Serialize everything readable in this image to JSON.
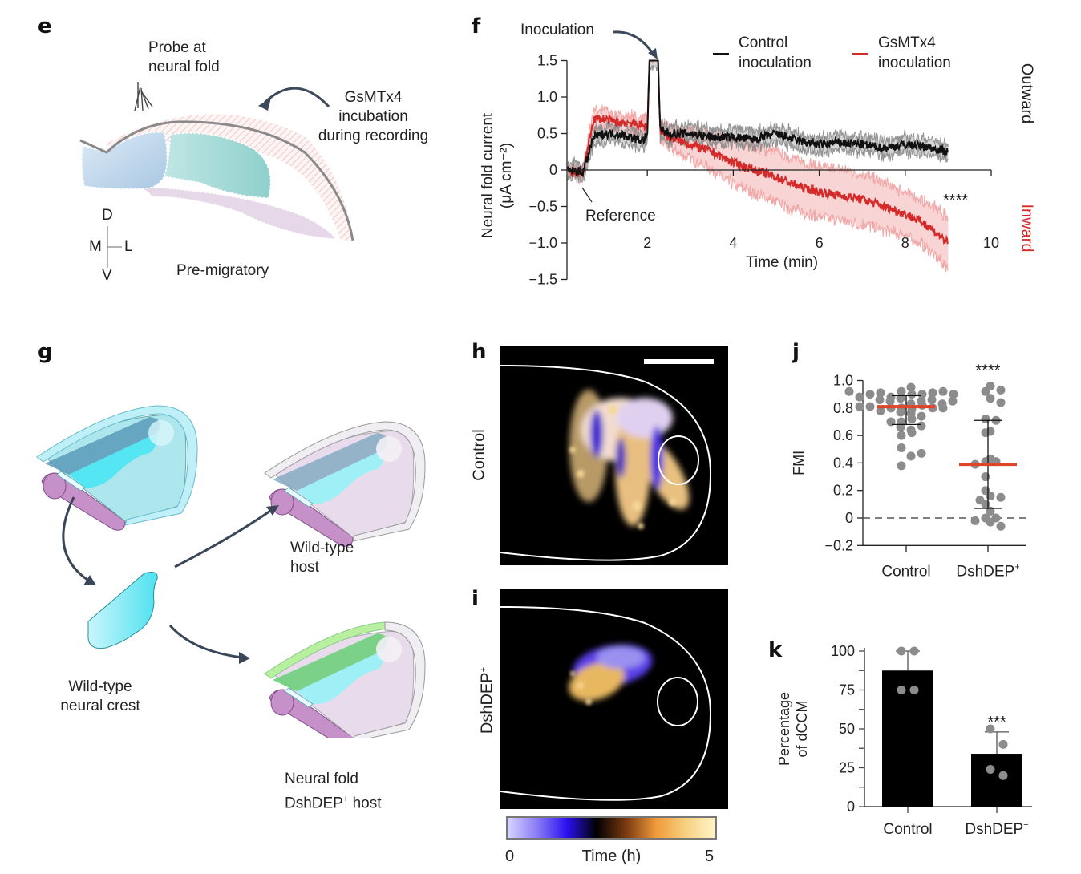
{
  "panels": {
    "e": {
      "label": "e",
      "probe_label": "Probe at\nneural fold",
      "incubation_label": "GsMTx4\nincubation\nduring recording",
      "stage_label": "Pre-migratory",
      "axes": {
        "dorsal": "D",
        "ventral": "V",
        "medial": "M",
        "lateral": "L"
      }
    },
    "f": {
      "label": "f"
    },
    "g": {
      "label": "g",
      "donor_label": "Wild-type\nneural crest",
      "host_wt_label": "Wild-type\nhost",
      "host_dsh_label_line1": "Neural fold",
      "host_dsh_label_line2_pre": "DshDEP",
      "host_dsh_label_sup": "+",
      "host_dsh_label_line2_post": " host"
    },
    "h": {
      "label": "h",
      "row_label": "Control"
    },
    "i": {
      "label": "i",
      "row_label": "DshDEP",
      "row_label_sup": "+"
    },
    "colorbar": {
      "min_label": "0",
      "title": "Time (h)",
      "max_label": "5",
      "stops": [
        "#d8d4ff",
        "#8a7bf5",
        "#2a10f0",
        "#000000",
        "#7a3a10",
        "#f09a3a",
        "#f8d080",
        "#fff4c8"
      ]
    },
    "j": {
      "label": "j"
    },
    "k": {
      "label": "k"
    }
  },
  "colors": {
    "control": "#111111",
    "control_band": "#8a8a8a",
    "gsmtx4": "#d42a2a",
    "gsmtx4_band": "#f0a0a0",
    "mean_bar": "#e0452a",
    "point": "#8c8c8c",
    "inward": "#d42a2a",
    "arrow": "#3d4a5c"
  },
  "chart_data": [
    {
      "id": "f",
      "type": "line",
      "title": "",
      "xlabel": "Time (min)",
      "ylabel": "Neural fold current (μA cm⁻²)",
      "ylabel_line1": "Neural fold current",
      "ylabel_line2": "(μA cm⁻²)",
      "xlim": [
        0,
        10
      ],
      "ylim": [
        -1.5,
        1.5
      ],
      "xticks": [
        2,
        4,
        6,
        8,
        10
      ],
      "yticks": [
        1.5,
        1.0,
        0.5,
        0,
        -0.5,
        -1.0,
        -1.5
      ],
      "ytick_labels": [
        "1.5",
        "1.0",
        "0.5",
        "0",
        "−0.5",
        "−1.0",
        "−1.5"
      ],
      "legend": [
        {
          "name": "Control\ninoculation",
          "line1": "Control",
          "line2": "inoculation"
        },
        {
          "name": "GsMTx4\ninoculation",
          "line1": "GsMTx4",
          "line2": "inoculation"
        }
      ],
      "legend_position": "top-right",
      "annotations": {
        "inoculation": "Inoculation",
        "reference": "Reference",
        "significance": "****",
        "outward": "Outward",
        "inward": "Inward"
      },
      "series": [
        {
          "name": "Control inoculation",
          "x": [
            0.15,
            0.5,
            0.55,
            0.75,
            1.0,
            1.3,
            1.6,
            1.9,
            2.0,
            2.05,
            2.15,
            2.25,
            2.3,
            2.5,
            3.0,
            3.5,
            4.0,
            4.5,
            5.0,
            5.5,
            6.0,
            6.5,
            7.0,
            7.5,
            8.0,
            8.5,
            9.0
          ],
          "y": [
            0.0,
            -0.03,
            0.05,
            0.45,
            0.5,
            0.5,
            0.45,
            0.4,
            0.5,
            1.5,
            1.5,
            1.5,
            0.55,
            0.5,
            0.5,
            0.45,
            0.45,
            0.42,
            0.5,
            0.4,
            0.35,
            0.38,
            0.35,
            0.3,
            0.35,
            0.32,
            0.25
          ],
          "sem": 0.1
        },
        {
          "name": "GsMTx4 inoculation",
          "x": [
            0.15,
            0.5,
            0.55,
            0.75,
            1.0,
            1.3,
            1.6,
            1.9,
            2.0,
            2.05,
            2.15,
            2.25,
            2.3,
            2.5,
            3.0,
            3.5,
            4.0,
            4.5,
            5.0,
            5.5,
            6.0,
            6.5,
            7.0,
            7.5,
            8.0,
            8.5,
            9.0
          ],
          "y": [
            -0.02,
            -0.05,
            0.1,
            0.7,
            0.7,
            0.65,
            0.65,
            0.6,
            0.6,
            1.5,
            1.5,
            1.5,
            0.55,
            0.45,
            0.35,
            0.25,
            0.1,
            0.0,
            -0.1,
            -0.22,
            -0.3,
            -0.35,
            -0.4,
            -0.5,
            -0.6,
            -0.75,
            -1.0
          ],
          "sem": [
            0.05,
            0.08,
            0.1,
            0.12,
            0.12,
            0.1,
            0.1,
            0.1,
            0.1,
            0,
            0,
            0,
            0.12,
            0.15,
            0.2,
            0.25,
            0.3,
            0.32,
            0.35,
            0.35,
            0.35,
            0.35,
            0.35,
            0.32,
            0.3,
            0.3,
            0.35
          ]
        }
      ]
    },
    {
      "id": "j",
      "type": "scatter",
      "title": "",
      "xlabel": "",
      "ylabel": "FMI",
      "ylim": [
        -0.2,
        1.0
      ],
      "yticks": [
        1.0,
        0.8,
        0.6,
        0.4,
        0.2,
        0,
        -0.2
      ],
      "ytick_labels": [
        "1.0",
        "0.8",
        "0.6",
        "0.4",
        "0.2",
        "0",
        "−0.2"
      ],
      "categories": [
        "Control",
        "DshDEP"
      ],
      "category_sup": [
        "",
        "+"
      ],
      "significance": [
        "",
        "****"
      ],
      "reference_line": 0,
      "groups": [
        {
          "name": "Control",
          "mean": 0.81,
          "sd_low": 0.68,
          "sd_high": 0.89,
          "points": [
            0.92,
            0.9,
            0.88,
            0.83,
            0.8,
            0.79,
            0.9,
            0.85,
            0.8,
            0.7,
            0.64,
            0.91,
            0.87,
            0.82,
            0.78,
            0.72,
            0.6,
            0.51,
            0.45,
            0.91,
            0.86,
            0.8,
            0.76,
            0.7,
            0.67,
            0.62,
            0.47,
            0.38,
            0.9,
            0.85,
            0.81,
            0.74,
            0.92,
            0.88,
            0.83,
            0.77,
            0.66,
            0.95,
            0.9,
            0.86,
            0.8,
            0.92,
            0.85,
            0.81
          ]
        },
        {
          "name": "DshDEP+",
          "mean": 0.39,
          "sd_low": 0.07,
          "sd_high": 0.71,
          "points": [
            0.96,
            0.93,
            0.92,
            0.87,
            0.84,
            0.72,
            0.71,
            0.63,
            0.62,
            0.43,
            0.41,
            0.41,
            0.39,
            0.3,
            0.2,
            0.16,
            0.15,
            0.13,
            0.1,
            0.05,
            0.0,
            0.0,
            -0.02,
            -0.03,
            -0.06
          ]
        }
      ]
    },
    {
      "id": "k",
      "type": "bar",
      "title": "",
      "xlabel": "",
      "ylabel": "Percentage of dCCM",
      "ylabel_line1": "Percentage",
      "ylabel_line2": "of dCCM",
      "ylim": [
        0,
        100
      ],
      "yticks": [
        100,
        75,
        50,
        25,
        0
      ],
      "categories": [
        "Control",
        "DshDEP"
      ],
      "category_sup": [
        "",
        "+"
      ],
      "values": [
        87.5,
        34
      ],
      "error_high": [
        100,
        48
      ],
      "points": [
        [
          100,
          100,
          75,
          75
        ],
        [
          50,
          40,
          24,
          20
        ]
      ],
      "significance": [
        "",
        "***"
      ]
    }
  ]
}
